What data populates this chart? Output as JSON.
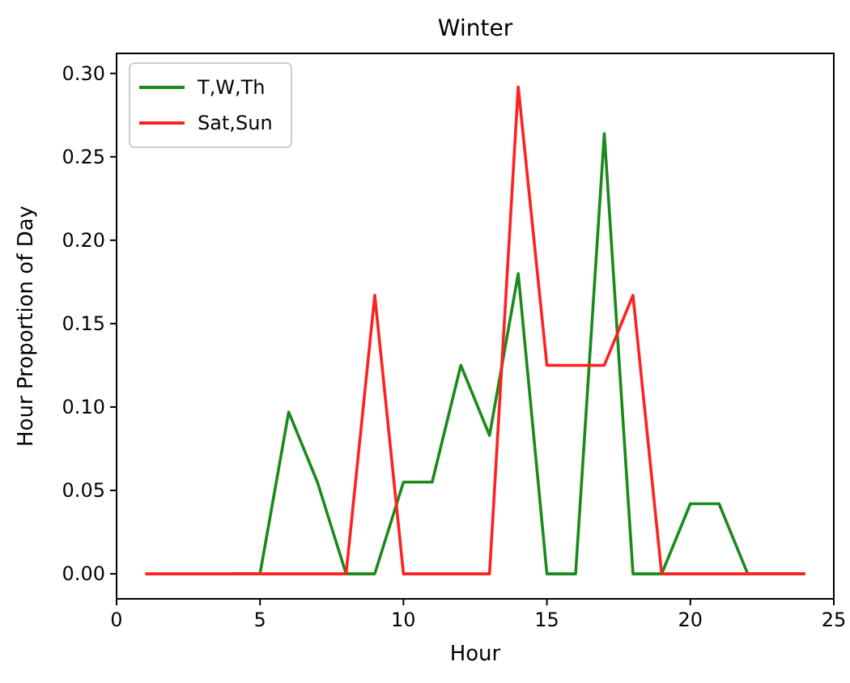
{
  "chart_data": {
    "type": "line",
    "title": "Winter",
    "xlabel": "Hour",
    "ylabel": "Hour Proportion of Day",
    "x": [
      1,
      2,
      3,
      4,
      5,
      6,
      7,
      8,
      9,
      10,
      11,
      12,
      13,
      14,
      15,
      16,
      17,
      18,
      19,
      20,
      21,
      22,
      23,
      24
    ],
    "series": [
      {
        "name": "T,W,Th",
        "color": "#1a8a1a",
        "values": [
          null,
          null,
          null,
          0,
          0,
          0.097,
          0.055,
          0,
          0,
          0.055,
          0.055,
          0.125,
          0.083,
          0.18,
          0,
          0,
          0.264,
          0,
          0,
          0.042,
          0.042,
          0,
          0,
          0
        ]
      },
      {
        "name": "Sat,Sun",
        "color": "#ff2020",
        "values": [
          0,
          0,
          0,
          0,
          0,
          0,
          0,
          0,
          0.167,
          0,
          0,
          0,
          0,
          0.292,
          0.125,
          0.125,
          0.125,
          0.167,
          0,
          0,
          0,
          0,
          0,
          0
        ]
      }
    ],
    "xlim": [
      0,
      25
    ],
    "xticks": [
      0,
      5,
      10,
      15,
      20,
      25
    ],
    "ylim": [
      -0.015,
      0.312
    ],
    "yticks": [
      {
        "value": 0,
        "label": "0.00"
      },
      {
        "value": 0.05,
        "label": "0.05"
      },
      {
        "value": 0.1,
        "label": "0.10"
      },
      {
        "value": 0.15,
        "label": "0.15"
      },
      {
        "value": 0.2,
        "label": "0.20"
      },
      {
        "value": 0.25,
        "label": "0.25"
      },
      {
        "value": 0.3,
        "label": "0.30"
      }
    ],
    "legend": "top left",
    "grid": false,
    "marker": "none",
    "line_style": "solid"
  }
}
